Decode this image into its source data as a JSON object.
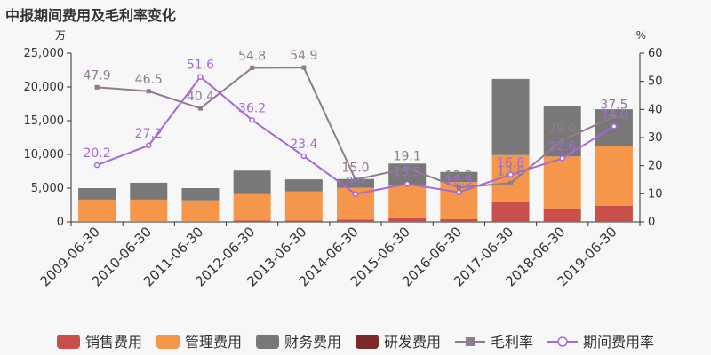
{
  "chart_data": {
    "type": "bar",
    "title": "中报期间费用及毛利率变化",
    "left_unit": "万",
    "right_unit": "%",
    "categories": [
      "2009-06-30",
      "2010-06-30",
      "2011-06-30",
      "2012-06-30",
      "2013-06-30",
      "2014-06-30",
      "2015-06-30",
      "2016-06-30",
      "2017-06-30",
      "2018-06-30",
      "2019-06-30"
    ],
    "ylim_left": [
      0,
      25000
    ],
    "yticks_left": [
      "0",
      "5,000",
      "10,000",
      "15,000",
      "20,000",
      "25,000"
    ],
    "ylim_right": [
      0,
      60
    ],
    "yticks_right": [
      "0",
      "10",
      "20",
      "30",
      "40",
      "50",
      "60"
    ],
    "stack_series": [
      {
        "name": "销售费用",
        "color": "#c94f4b",
        "values": [
          100,
          100,
          100,
          200,
          200,
          350,
          550,
          400,
          2900,
          1900,
          2400
        ]
      },
      {
        "name": "管理费用",
        "color": "#f5964a",
        "values": [
          3200,
          3200,
          3100,
          3900,
          4300,
          4700,
          4900,
          5500,
          7000,
          7800,
          8800
        ]
      },
      {
        "name": "财务费用",
        "color": "#787878",
        "values": [
          1700,
          2500,
          1800,
          3500,
          1800,
          1300,
          3200,
          1500,
          11300,
          7400,
          5500
        ]
      },
      {
        "name": "研发费用",
        "color": "#7b2a29",
        "values": [
          0,
          0,
          0,
          0,
          0,
          0,
          0,
          0,
          0,
          0,
          0
        ]
      }
    ],
    "line_series": [
      {
        "name": "毛利率",
        "color": "#8e7c8e",
        "marker": "square",
        "values": [
          47.9,
          46.5,
          40.4,
          54.8,
          54.9,
          15.0,
          19.1,
          12.2,
          13.8,
          29.0,
          37.5
        ],
        "labels": [
          "47.9",
          "46.5",
          "40.4",
          "54.8",
          "54.9",
          "15.0",
          "19.1",
          "12.2",
          "13.8",
          "29.0",
          "37.5"
        ]
      },
      {
        "name": "期间费用率",
        "color": "#a56ad6",
        "marker": "circle",
        "values": [
          20.2,
          27.2,
          51.6,
          36.2,
          23.4,
          9.9,
          13.5,
          10.5,
          16.8,
          22.6,
          34.0
        ],
        "labels": [
          "20.2",
          "27.2",
          "51.6",
          "36.2",
          "23.4",
          "9.9",
          "13.5",
          "10.5",
          "16.8",
          "22.6",
          "34.0"
        ]
      }
    ]
  }
}
